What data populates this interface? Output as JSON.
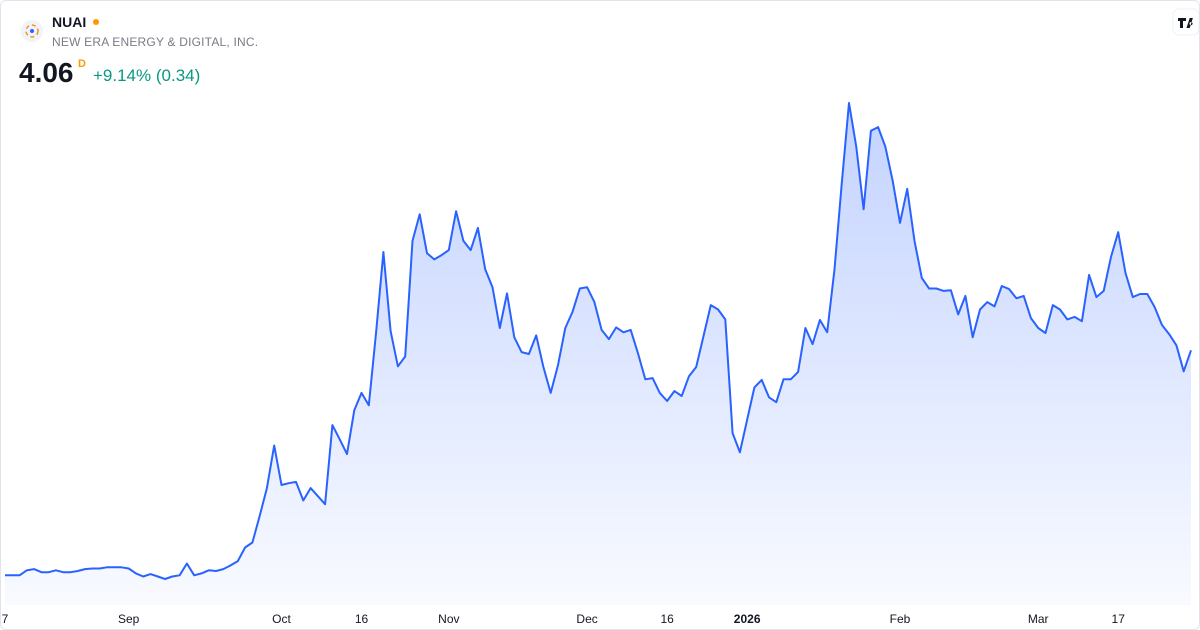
{
  "chart_data": {
    "type": "area",
    "symbol": "NUAI",
    "company": "NEW ERA ENERGY & DIGITAL, INC.",
    "price": "4.06",
    "price_flag": "D",
    "change": "+9.14% (0.34)",
    "color": "#2962ff",
    "categories": [
      "7",
      null,
      null,
      null,
      null,
      null,
      null,
      null,
      null,
      null,
      null,
      null,
      null,
      null,
      null,
      null,
      null,
      "Sep",
      null,
      null,
      null,
      null,
      null,
      null,
      null,
      null,
      null,
      null,
      null,
      null,
      null,
      null,
      null,
      null,
      null,
      null,
      null,
      null,
      "Oct",
      null,
      null,
      null,
      null,
      null,
      null,
      null,
      null,
      null,
      null,
      "16",
      null,
      null,
      null,
      null,
      null,
      null,
      null,
      null,
      null,
      null,
      null,
      "Nov",
      null,
      null,
      null,
      null,
      null,
      null,
      null,
      null,
      null,
      null,
      null,
      null,
      null,
      null,
      null,
      null,
      null,
      null,
      "Dec",
      null,
      null,
      null,
      null,
      null,
      null,
      null,
      null,
      null,
      null,
      "16",
      null,
      null,
      null,
      null,
      null,
      null,
      null,
      null,
      null,
      null,
      "2026",
      null,
      null,
      null,
      null,
      null,
      null,
      null,
      null,
      null,
      null,
      null,
      null,
      null,
      null,
      null,
      null,
      null,
      null,
      null,
      null,
      "Feb",
      null,
      null,
      null,
      null,
      null,
      null,
      null,
      null,
      null,
      null,
      null,
      null,
      null,
      null,
      null,
      null,
      null,
      null,
      "Mar",
      null,
      null,
      null,
      null,
      null,
      null,
      null,
      null,
      null,
      null,
      "17",
      null,
      null,
      null,
      null,
      null,
      null,
      null,
      null,
      null,
      null
    ],
    "values": [
      0.42,
      0.42,
      0.42,
      0.5,
      0.52,
      0.47,
      0.47,
      0.5,
      0.47,
      0.47,
      0.49,
      0.52,
      0.53,
      0.53,
      0.55,
      0.55,
      0.55,
      0.53,
      0.45,
      0.4,
      0.44,
      0.4,
      0.36,
      0.4,
      0.42,
      0.61,
      0.42,
      0.45,
      0.5,
      0.49,
      0.52,
      0.58,
      0.65,
      0.87,
      0.95,
      1.38,
      1.83,
      2.52,
      1.88,
      1.91,
      1.93,
      1.63,
      1.83,
      1.7,
      1.57,
      2.85,
      2.62,
      2.38,
      3.09,
      3.37,
      3.17,
      4.35,
      5.65,
      4.37,
      3.8,
      3.96,
      5.83,
      6.26,
      5.63,
      5.53,
      5.6,
      5.68,
      6.31,
      5.83,
      5.68,
      6.04,
      5.37,
      5.08,
      4.42,
      4.98,
      4.27,
      4.03,
      4.0,
      4.3,
      3.79,
      3.37,
      3.82,
      4.42,
      4.68,
      5.06,
      5.08,
      4.84,
      4.39,
      4.24,
      4.43,
      4.35,
      4.39,
      4.01,
      3.59,
      3.61,
      3.37,
      3.24,
      3.4,
      3.32,
      3.64,
      3.79,
      4.29,
      4.79,
      4.72,
      4.56,
      2.72,
      2.41,
      2.94,
      3.46,
      3.58,
      3.3,
      3.22,
      3.59,
      3.59,
      3.71,
      4.42,
      4.16,
      4.55,
      4.35,
      5.37,
      6.75,
      8.06,
      7.35,
      6.34,
      7.61,
      7.67,
      7.35,
      6.8,
      6.12,
      6.67,
      5.83,
      5.23,
      5.06,
      5.06,
      5.02,
      5.03,
      4.64,
      4.94,
      4.27,
      4.72,
      4.84,
      4.77,
      5.1,
      5.05,
      4.9,
      4.94,
      4.58,
      4.42,
      4.34,
      4.79,
      4.72,
      4.56,
      4.6,
      4.53,
      5.28,
      4.92,
      5.02,
      5.57,
      5.97,
      5.31,
      4.92,
      4.97,
      4.97,
      4.76,
      4.47,
      4.32,
      4.14,
      3.72,
      4.06
    ]
  }
}
